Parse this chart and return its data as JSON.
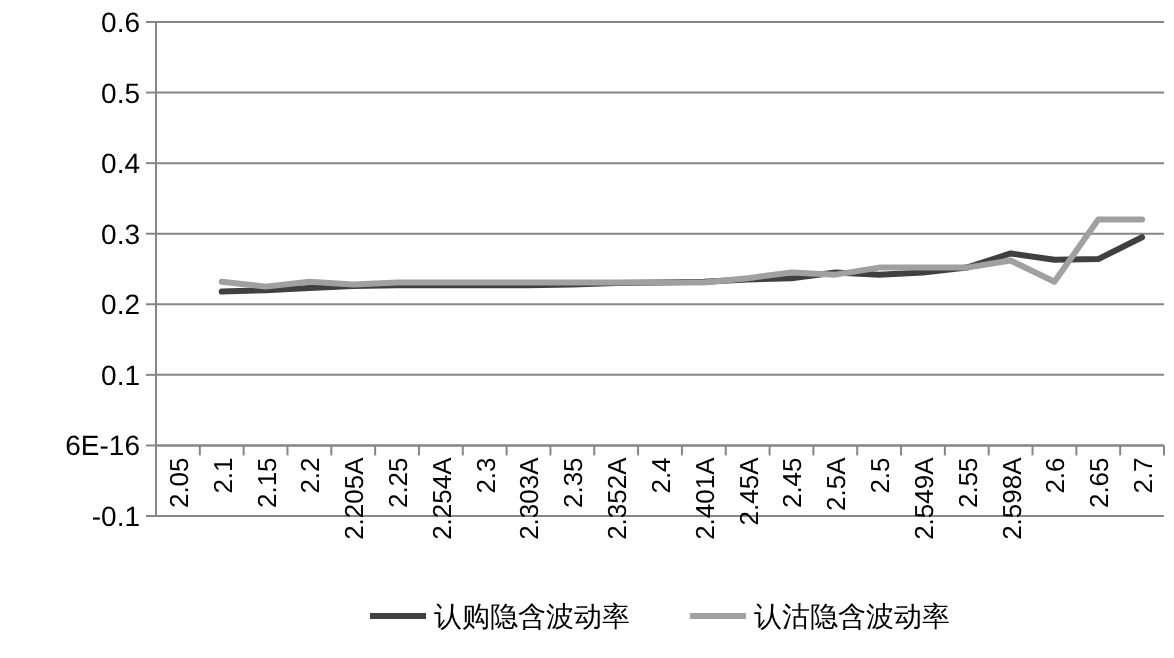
{
  "chart_data": {
    "type": "line",
    "categories": [
      "2.05",
      "2.1",
      "2.15",
      "2.2",
      "2.205A",
      "2.25",
      "2.254A",
      "2.3",
      "2.303A",
      "2.35",
      "2.352A",
      "2.4",
      "2.401A",
      "2.45A",
      "2.45",
      "2.5A",
      "2.5",
      "2.549A",
      "2.55",
      "2.598A",
      "2.6",
      "2.65",
      "2.7"
    ],
    "series": [
      {
        "name": "认购隐含波动率",
        "color": "#404040",
        "values": [
          null,
          0.218,
          0.22,
          0.223,
          0.226,
          0.227,
          0.227,
          0.227,
          0.227,
          0.228,
          0.23,
          0.231,
          0.232,
          0.235,
          0.237,
          0.245,
          0.242,
          0.245,
          0.252,
          0.272,
          0.263,
          0.264,
          0.295
        ]
      },
      {
        "name": "认沽隐含波动率",
        "color": "#a0a0a0",
        "values": [
          null,
          0.232,
          0.225,
          0.232,
          0.228,
          0.231,
          0.231,
          0.231,
          0.231,
          0.231,
          0.231,
          0.231,
          0.231,
          0.237,
          0.245,
          0.242,
          0.252,
          0.252,
          0.252,
          0.262,
          0.232,
          0.32,
          0.32
        ]
      }
    ],
    "ylim": [
      -0.1,
      0.6
    ],
    "yticks": [
      -0.1,
      {
        "value": 0,
        "label": "6E-16"
      },
      0.1,
      0.2,
      0.3,
      0.4,
      0.5,
      0.6
    ],
    "grid": "y",
    "legend": "bottom",
    "marker": "none",
    "line_style": "solid"
  }
}
